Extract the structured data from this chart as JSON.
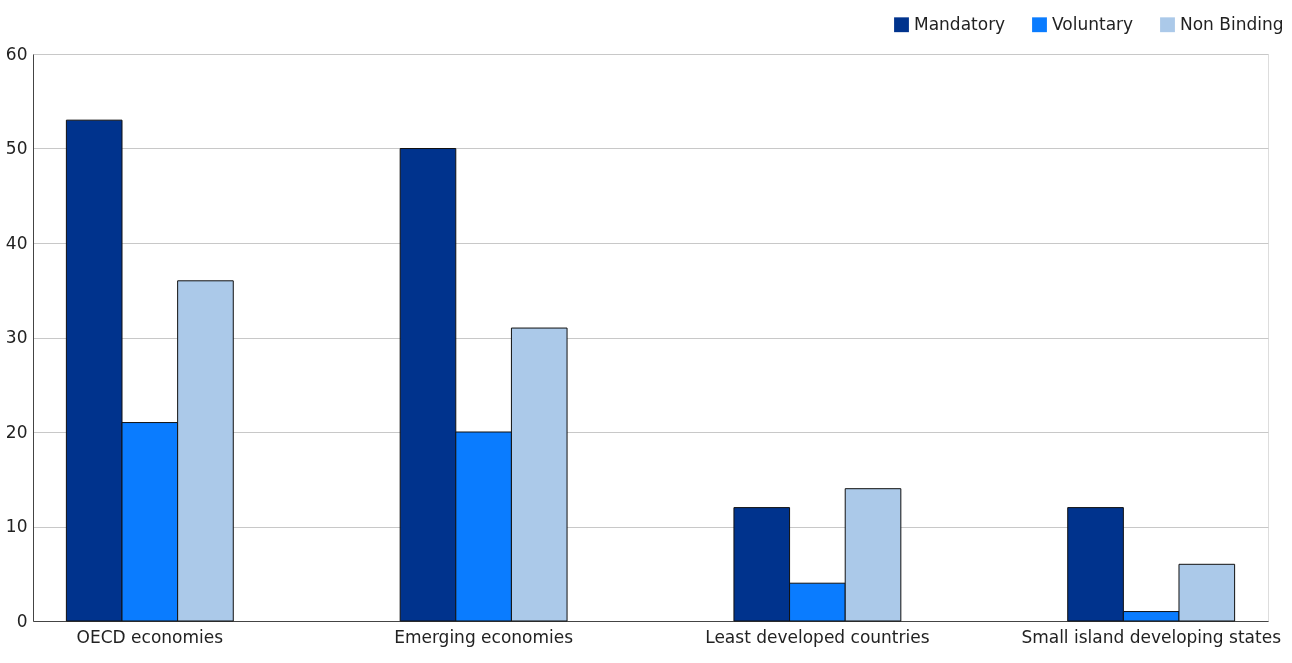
{
  "chart_data": {
    "type": "bar",
    "categories": [
      "OECD economies",
      "Emerging economies",
      "Least developed countries",
      "Small island developing states"
    ],
    "series": [
      {
        "name": "Mandatory",
        "color": "#00338d",
        "values": [
          53,
          50,
          12,
          12
        ]
      },
      {
        "name": "Voluntary",
        "color": "#0a7cff",
        "values": [
          21,
          20,
          4,
          1
        ]
      },
      {
        "name": "Non Binding",
        "color": "#abc9e9",
        "values": [
          36,
          31,
          14,
          6
        ]
      }
    ],
    "ylim": [
      0,
      60
    ],
    "yticks": [
      0,
      10,
      20,
      30,
      40,
      50,
      60
    ],
    "grid": "y",
    "legend": "top right"
  }
}
